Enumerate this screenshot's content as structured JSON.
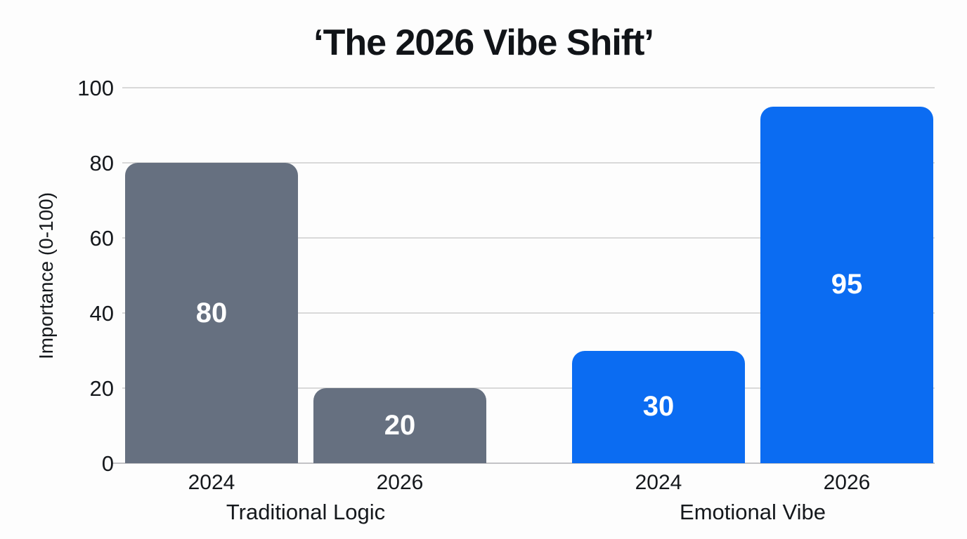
{
  "chart_data": {
    "type": "bar",
    "title": "‘The 2026 Vibe Shift’",
    "ylabel": "Importance (0-100)",
    "xlabel": "",
    "ylim": [
      0,
      100
    ],
    "yticks": [
      0,
      20,
      40,
      60,
      80,
      100
    ],
    "grid": "horizontal",
    "legend": "none",
    "value_label_style": {
      "color": "#ffffff",
      "position": "inside-center"
    },
    "groups": [
      {
        "label": "Traditional Logic",
        "bar_color": "#667080",
        "bars": [
          {
            "category": "2024",
            "value": 80
          },
          {
            "category": "2026",
            "value": 20
          }
        ]
      },
      {
        "label": "Emotional Vibe",
        "bar_color": "#0b6cf2",
        "bars": [
          {
            "category": "2024",
            "value": 30
          },
          {
            "category": "2026",
            "value": 95
          }
        ]
      }
    ],
    "colors": {
      "grid_line": "#d9d9d9",
      "axis_line": "#c3c3c6",
      "background": "#fdfdfd",
      "text": "#15181c"
    }
  }
}
